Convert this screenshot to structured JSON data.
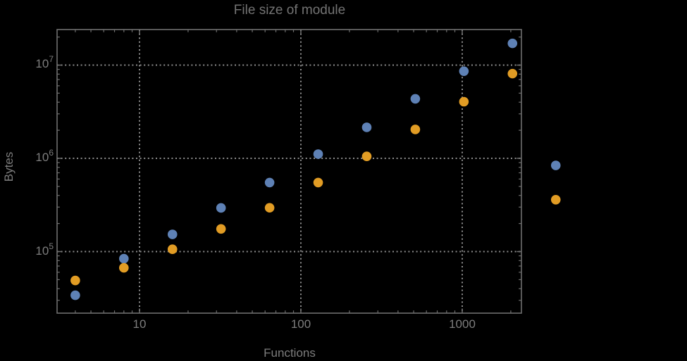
{
  "colors": {
    "background": "#000000",
    "frame": "#6f6f6f",
    "grid": "#8d8d8d",
    "tick": "#6f6f6f",
    "text": "#7d7d7d",
    "series1": "#5e81b5",
    "series2": "#e19c24"
  },
  "chart_data": {
    "type": "scatter",
    "title": "File size of module",
    "xlabel": "Functions",
    "ylabel": "Bytes",
    "x_scale": "log",
    "y_scale": "log",
    "grid": "dotted",
    "legend": "none",
    "x_ticks": [
      10,
      100,
      1000
    ],
    "x_tick_labels": [
      "10",
      "100",
      "1000"
    ],
    "y_ticks": [
      100000,
      1000000,
      10000000
    ],
    "y_tick_labels": [
      {
        "base": "10",
        "exp": "5"
      },
      {
        "base": "10",
        "exp": "6"
      },
      {
        "base": "10",
        "exp": "7"
      }
    ],
    "x_range": [
      3.1,
      2330
    ],
    "y_range": [
      22000,
      24000000
    ],
    "series": [
      {
        "name": "blue",
        "color": "#5e81b5",
        "points": [
          [
            4,
            34000
          ],
          [
            8,
            84000
          ],
          [
            16,
            153000
          ],
          [
            32,
            294000
          ],
          [
            64,
            550000
          ],
          [
            128,
            1110000
          ],
          [
            256,
            2150000
          ],
          [
            512,
            4350000
          ],
          [
            1024,
            8600000
          ],
          [
            2048,
            17100000
          ],
          [
            3800,
            840000
          ]
        ]
      },
      {
        "name": "orange",
        "color": "#e19c24",
        "points": [
          [
            4,
            49000
          ],
          [
            8,
            67000
          ],
          [
            16,
            106000
          ],
          [
            32,
            175000
          ],
          [
            64,
            295000
          ],
          [
            128,
            550000
          ],
          [
            256,
            1050000
          ],
          [
            512,
            2040000
          ],
          [
            1024,
            4050000
          ],
          [
            2048,
            8100000
          ],
          [
            3800,
            360000
          ]
        ]
      }
    ]
  }
}
